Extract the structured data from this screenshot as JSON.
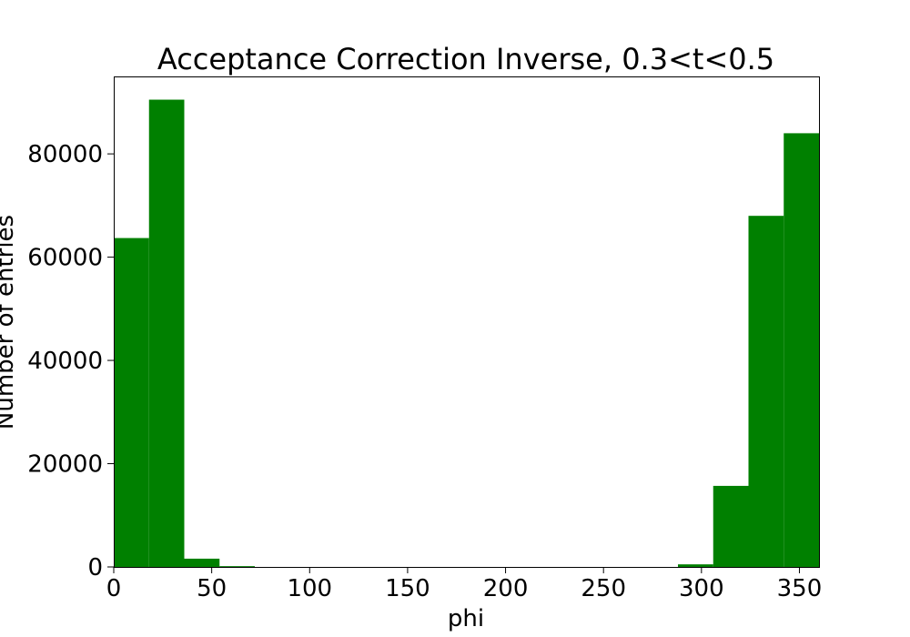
{
  "chart_data": {
    "type": "bar",
    "title": "Acceptance Correction Inverse, 0.3<t<0.5",
    "xlabel": "phi",
    "ylabel": "Number of entries",
    "xlim": [
      0,
      360
    ],
    "ylim": [
      0,
      95000
    ],
    "grid": false,
    "bar_color": "#008000",
    "bin_edges": [
      0,
      18,
      36,
      54,
      72,
      90,
      108,
      126,
      144,
      162,
      180,
      198,
      216,
      234,
      252,
      270,
      288,
      306,
      324,
      342,
      360
    ],
    "values": [
      63700,
      90500,
      1600,
      150,
      0,
      0,
      0,
      0,
      0,
      0,
      0,
      0,
      0,
      0,
      0,
      0,
      500,
      15700,
      68000,
      84000
    ],
    "xticks": [
      0,
      50,
      100,
      150,
      200,
      250,
      300,
      350
    ],
    "yticks": [
      0,
      20000,
      40000,
      60000,
      80000
    ]
  }
}
